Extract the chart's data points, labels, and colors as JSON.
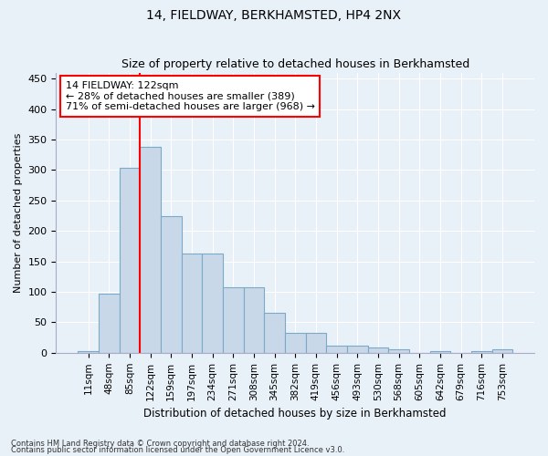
{
  "title": "14, FIELDWAY, BERKHAMSTED, HP4 2NX",
  "subtitle": "Size of property relative to detached houses in Berkhamsted",
  "xlabel": "Distribution of detached houses by size in Berkhamsted",
  "ylabel": "Number of detached properties",
  "categories": [
    "11sqm",
    "48sqm",
    "85sqm",
    "122sqm",
    "159sqm",
    "197sqm",
    "234sqm",
    "271sqm",
    "308sqm",
    "345sqm",
    "382sqm",
    "419sqm",
    "456sqm",
    "493sqm",
    "530sqm",
    "568sqm",
    "605sqm",
    "642sqm",
    "679sqm",
    "716sqm",
    "753sqm"
  ],
  "values": [
    3,
    97,
    303,
    338,
    225,
    163,
    163,
    108,
    108,
    65,
    32,
    32,
    12,
    12,
    9,
    5,
    0,
    2,
    0,
    2,
    5
  ],
  "bar_color": "#c8d8e8",
  "bar_edge_color": "#7aaac8",
  "vline_x_idx": 3,
  "vline_color": "red",
  "annotation_text": "14 FIELDWAY: 122sqm\n← 28% of detached houses are smaller (389)\n71% of semi-detached houses are larger (968) →",
  "annotation_box_color": "white",
  "annotation_box_edge": "red",
  "footnote1": "Contains HM Land Registry data © Crown copyright and database right 2024.",
  "footnote2": "Contains public sector information licensed under the Open Government Licence v3.0.",
  "ylim": [
    0,
    460
  ],
  "yticks": [
    0,
    50,
    100,
    150,
    200,
    250,
    300,
    350,
    400,
    450
  ],
  "bg_color": "#e8f0f8",
  "grid_color": "#ffffff",
  "title_fontsize": 10,
  "subtitle_fontsize": 9
}
